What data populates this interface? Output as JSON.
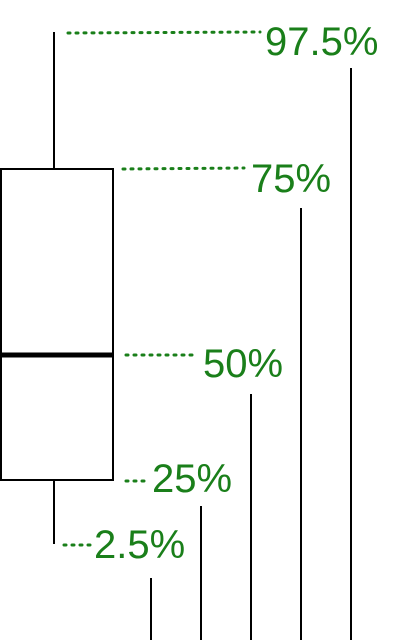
{
  "labels": {
    "p97_5": "97.5%",
    "p75": "75%",
    "p50": "50%",
    "p25": "25%",
    "p2_5": "2.5%"
  },
  "colors": {
    "label": "#1a7f1a",
    "line": "#000000",
    "box_fill": "#ffffff"
  }
}
